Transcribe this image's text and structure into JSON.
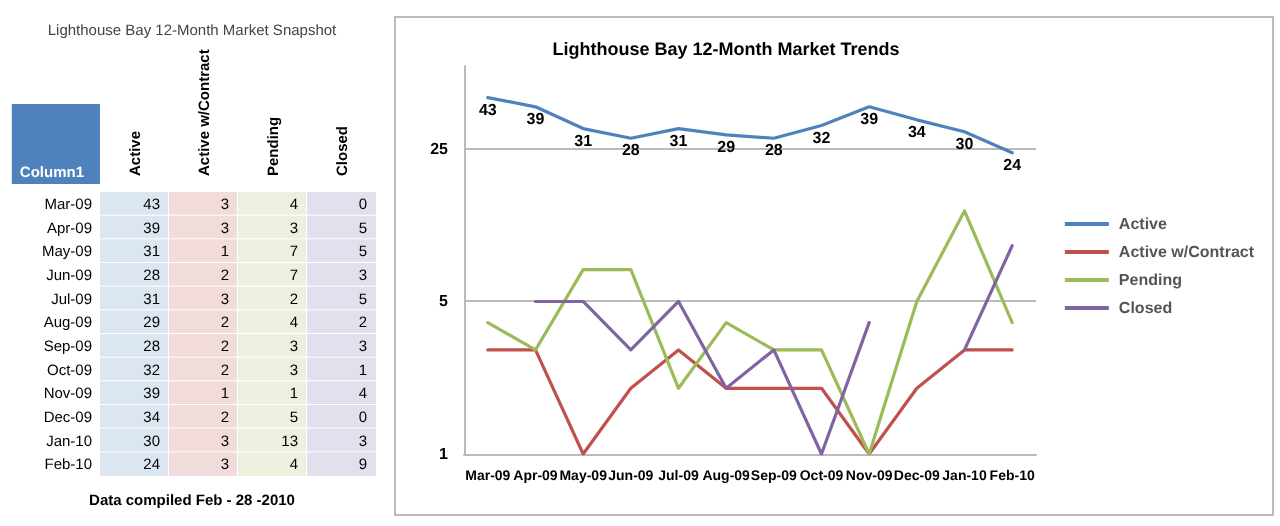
{
  "chart_data": [
    {
      "type": "heatmap",
      "title": "Lighthouse Bay 12-Month Market Snapshot",
      "ylabel": "Column1",
      "categories": [
        "Active",
        "Active w/Contract",
        "Pending",
        "Closed"
      ],
      "y_categories": [
        "Mar-09",
        "Apr-09",
        "May-09",
        "Jun-09",
        "Jul-09",
        "Aug-09",
        "Sep-09",
        "Oct-09",
        "Nov-09",
        "Dec-09",
        "Jan-10",
        "Feb-10"
      ],
      "cells": [
        [
          43,
          3,
          4,
          0
        ],
        [
          39,
          3,
          3,
          5
        ],
        [
          31,
          1,
          7,
          5
        ],
        [
          28,
          2,
          7,
          3
        ],
        [
          31,
          3,
          2,
          5
        ],
        [
          29,
          2,
          4,
          2
        ],
        [
          28,
          2,
          3,
          3
        ],
        [
          32,
          2,
          3,
          1
        ],
        [
          39,
          1,
          1,
          4
        ],
        [
          34,
          2,
          5,
          0
        ],
        [
          30,
          3,
          13,
          3
        ],
        [
          24,
          3,
          4,
          9
        ]
      ],
      "data_labels": true,
      "annotations": [
        "Data compiled Feb - 28 -2010"
      ]
    },
    {
      "type": "line",
      "title": "Lighthouse Bay 12-Month Market Trends",
      "categories": [
        "Mar-09",
        "Apr-09",
        "May-09",
        "Jun-09",
        "Jul-09",
        "Aug-09",
        "Sep-09",
        "Oct-09",
        "Nov-09",
        "Dec-09",
        "Jan-10",
        "Feb-10"
      ],
      "series": [
        {
          "name": "Active",
          "color": "#4f81bd",
          "values": [
            43,
            39,
            31,
            28,
            31,
            29,
            28,
            32,
            39,
            34,
            30,
            24
          ],
          "value_labels": [
            "43",
            "39",
            "31",
            "28",
            "31",
            "29",
            "28",
            "32",
            "39",
            "34",
            "30",
            "24"
          ]
        },
        {
          "name": "Active w/Contract",
          "color": "#c0504d",
          "values": [
            3,
            3,
            1,
            2,
            3,
            2,
            2,
            2,
            1,
            2,
            3,
            3
          ]
        },
        {
          "name": "Pending",
          "color": "#9bbb59",
          "values": [
            4,
            3,
            7,
            7,
            2,
            4,
            3,
            3,
            1,
            5,
            13,
            4
          ]
        },
        {
          "name": "Closed",
          "color": "#8064a2",
          "values": [
            null,
            5,
            5,
            3,
            5,
            2,
            3,
            1,
            4,
            null,
            3,
            9
          ]
        }
      ],
      "log": true,
      "ylim": [
        1,
        60
      ],
      "yticks": [
        1,
        5,
        25
      ],
      "grid": "y",
      "legend": "right",
      "marker": "none",
      "line_style": "solid"
    }
  ]
}
